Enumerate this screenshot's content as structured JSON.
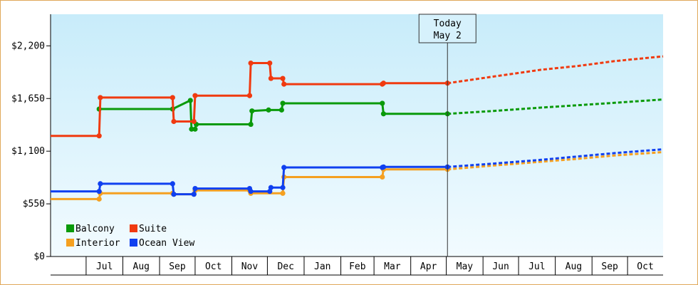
{
  "chart_data": {
    "type": "line",
    "title": "",
    "xlabel": "",
    "ylabel": "",
    "today_label": "Today",
    "today_date": "May 2",
    "ylim": [
      0,
      2530
    ],
    "y_ticks": [
      {
        "value": 0,
        "label": "$0"
      },
      {
        "value": 550,
        "label": "$550"
      },
      {
        "value": 1100,
        "label": "$1,100"
      },
      {
        "value": 1650,
        "label": "$1,650"
      },
      {
        "value": 2200,
        "label": "$2,200"
      }
    ],
    "x_range": [
      "2025-06-01",
      "2026-10-31"
    ],
    "today": "2026-05-02",
    "month_ticks": [
      {
        "start": "2025-07-01",
        "end": "2025-08-01",
        "label": "Jul"
      },
      {
        "start": "2025-08-01",
        "end": "2025-09-01",
        "label": "Aug"
      },
      {
        "start": "2025-09-01",
        "end": "2025-10-01",
        "label": "Sep"
      },
      {
        "start": "2025-10-01",
        "end": "2025-11-01",
        "label": "Oct"
      },
      {
        "start": "2025-11-01",
        "end": "2025-12-01",
        "label": "Nov"
      },
      {
        "start": "2025-12-01",
        "end": "2026-01-01",
        "label": "Dec"
      },
      {
        "start": "2026-01-01",
        "end": "2026-02-01",
        "label": "Jan"
      },
      {
        "start": "2026-02-01",
        "end": "2026-03-01",
        "label": "Feb"
      },
      {
        "start": "2026-03-01",
        "end": "2026-04-01",
        "label": "Mar"
      },
      {
        "start": "2026-04-01",
        "end": "2026-05-01",
        "label": "Apr"
      },
      {
        "start": "2026-05-01",
        "end": "2026-06-01",
        "label": "May"
      },
      {
        "start": "2026-06-01",
        "end": "2026-07-01",
        "label": "Jun"
      },
      {
        "start": "2026-07-01",
        "end": "2026-08-01",
        "label": "Jul"
      },
      {
        "start": "2026-08-01",
        "end": "2026-09-01",
        "label": "Aug"
      },
      {
        "start": "2026-09-01",
        "end": "2026-10-01",
        "label": "Sep"
      },
      {
        "start": "2026-10-01",
        "end": "2026-10-31",
        "label": "Oct"
      }
    ],
    "grid": false,
    "legend_position": "bottom-left",
    "series": [
      {
        "name": "Balcony",
        "color": "#0a9a0a",
        "history": [
          [
            "2025-07-12",
            1540
          ],
          [
            "2025-09-12",
            1540
          ],
          [
            "2025-09-27",
            1630
          ],
          [
            "2025-09-28",
            1330
          ],
          [
            "2025-10-01",
            1330
          ],
          [
            "2025-10-02",
            1380
          ],
          [
            "2025-11-17",
            1380
          ],
          [
            "2025-11-18",
            1520
          ],
          [
            "2025-12-02",
            1530
          ],
          [
            "2025-12-13",
            1530
          ],
          [
            "2025-12-14",
            1600
          ],
          [
            "2026-03-08",
            1600
          ],
          [
            "2026-03-09",
            1490
          ],
          [
            "2026-05-02",
            1490
          ]
        ],
        "forecast": [
          [
            "2026-05-02",
            1490
          ],
          [
            "2026-06-10",
            1520
          ],
          [
            "2026-07-20",
            1555
          ],
          [
            "2026-08-20",
            1580
          ],
          [
            "2026-09-20",
            1605
          ],
          [
            "2026-10-31",
            1640
          ]
        ]
      },
      {
        "name": "Suite",
        "color": "#f03a10",
        "history": [
          [
            "2025-06-01",
            1260
          ],
          [
            "2025-07-12",
            1260
          ],
          [
            "2025-07-13",
            1660
          ],
          [
            "2025-09-12",
            1660
          ],
          [
            "2025-09-13",
            1410
          ],
          [
            "2025-09-30",
            1410
          ],
          [
            "2025-10-01",
            1680
          ],
          [
            "2025-11-16",
            1680
          ],
          [
            "2025-11-17",
            2020
          ],
          [
            "2025-12-03",
            2020
          ],
          [
            "2025-12-04",
            1860
          ],
          [
            "2025-12-14",
            1860
          ],
          [
            "2025-12-15",
            1800
          ],
          [
            "2026-03-08",
            1800
          ],
          [
            "2026-03-09",
            1810
          ],
          [
            "2026-05-02",
            1810
          ]
        ],
        "forecast": [
          [
            "2026-05-02",
            1810
          ],
          [
            "2026-06-10",
            1880
          ],
          [
            "2026-07-20",
            1950
          ],
          [
            "2026-08-20",
            1990
          ],
          [
            "2026-09-20",
            2040
          ],
          [
            "2026-10-31",
            2090
          ]
        ]
      },
      {
        "name": "Interior",
        "color": "#f5a020",
        "history": [
          [
            "2025-06-01",
            600
          ],
          [
            "2025-07-12",
            600
          ],
          [
            "2025-07-13",
            660
          ],
          [
            "2025-09-12",
            660
          ],
          [
            "2025-09-13",
            650
          ],
          [
            "2025-09-30",
            650
          ],
          [
            "2025-10-01",
            690
          ],
          [
            "2025-11-16",
            690
          ],
          [
            "2025-11-17",
            660
          ],
          [
            "2025-12-14",
            660
          ],
          [
            "2025-12-15",
            830
          ],
          [
            "2026-03-08",
            830
          ],
          [
            "2026-03-09",
            910
          ],
          [
            "2026-05-02",
            910
          ]
        ],
        "forecast": [
          [
            "2026-05-02",
            910
          ],
          [
            "2026-06-10",
            950
          ],
          [
            "2026-07-20",
            990
          ],
          [
            "2026-08-20",
            1020
          ],
          [
            "2026-09-20",
            1055
          ],
          [
            "2026-10-31",
            1090
          ]
        ]
      },
      {
        "name": "Ocean View",
        "color": "#1040f0",
        "history": [
          [
            "2025-06-01",
            680
          ],
          [
            "2025-07-12",
            680
          ],
          [
            "2025-07-13",
            760
          ],
          [
            "2025-09-12",
            760
          ],
          [
            "2025-09-13",
            650
          ],
          [
            "2025-09-30",
            650
          ],
          [
            "2025-10-01",
            710
          ],
          [
            "2025-11-16",
            710
          ],
          [
            "2025-11-17",
            680
          ],
          [
            "2025-12-03",
            680
          ],
          [
            "2025-12-04",
            720
          ],
          [
            "2025-12-14",
            720
          ],
          [
            "2025-12-15",
            930
          ],
          [
            "2026-03-08",
            930
          ],
          [
            "2026-03-09",
            935
          ],
          [
            "2026-05-02",
            935
          ]
        ],
        "forecast": [
          [
            "2026-05-02",
            935
          ],
          [
            "2026-06-10",
            970
          ],
          [
            "2026-07-20",
            1010
          ],
          [
            "2026-08-20",
            1045
          ],
          [
            "2026-09-20",
            1080
          ],
          [
            "2026-10-31",
            1120
          ]
        ]
      }
    ],
    "legend": [
      {
        "label": "Balcony",
        "color": "#0a9a0a"
      },
      {
        "label": "Suite",
        "color": "#f03a10"
      },
      {
        "label": "Interior",
        "color": "#f5a020"
      },
      {
        "label": "Ocean View",
        "color": "#1040f0"
      }
    ]
  }
}
